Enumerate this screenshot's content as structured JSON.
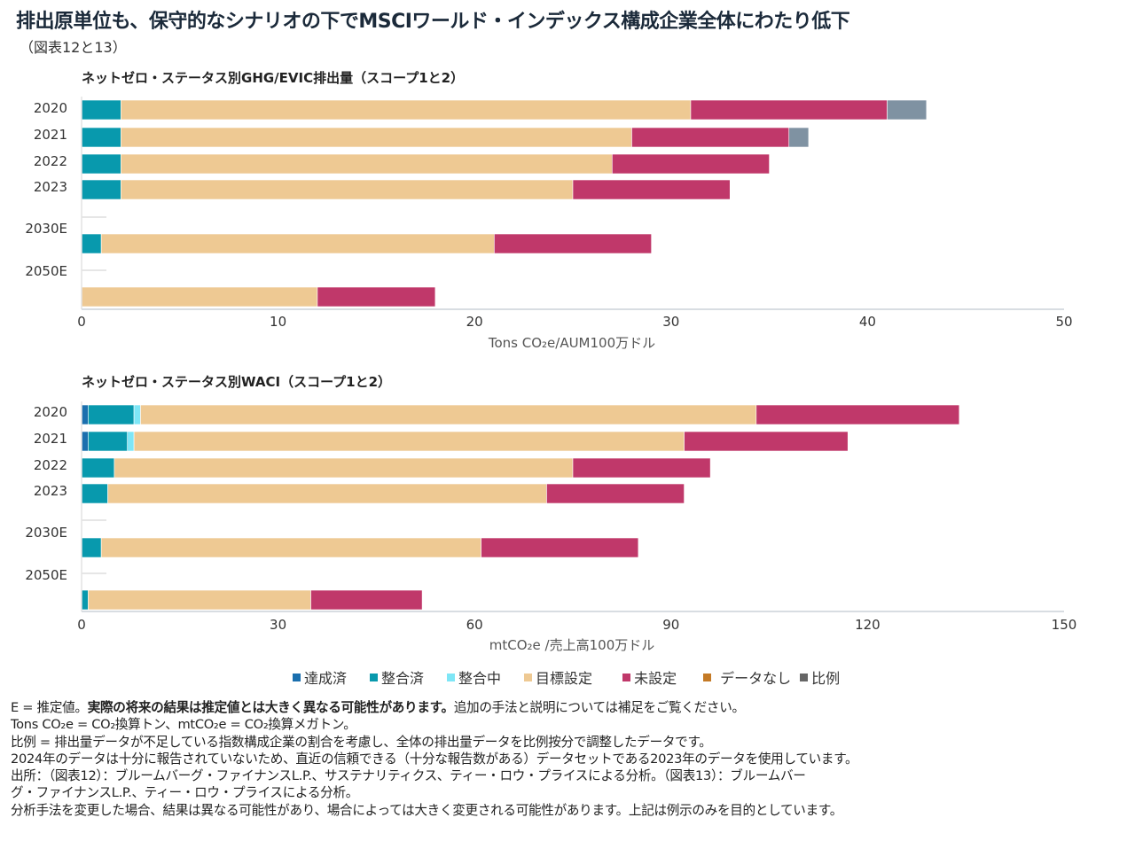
{
  "title": "排出原単位も、保守的なシナリオの下でMSCIワールド・インデックス構成企業全体にわたり低下",
  "subtitle": "（図表12と13）",
  "legend": [
    {
      "label": "達成済",
      "color": "#1a6fae"
    },
    {
      "label": "整合済",
      "color": "#0899ad"
    },
    {
      "label": "整合中",
      "color": "#7ee6f6"
    },
    {
      "label": "目標設定",
      "color": "#eec993"
    },
    {
      "label": "未設定",
      "color": "#c0386a"
    },
    {
      "label": "データなし",
      "color": "#c47a26"
    },
    {
      "label": "比例",
      "color": "#666666"
    }
  ],
  "chart_data": [
    {
      "type": "bar",
      "orientation": "horizontal",
      "stacked": true,
      "title": "ネットゼロ・ステータス別GHG/EVIC排出量（スコープ1と2）",
      "xlabel": "Tons CO₂e/AUM100万ドル",
      "xlim": [
        0,
        50
      ],
      "xticks": [
        "0",
        "10",
        "20",
        "30",
        "40",
        "50"
      ],
      "categories": [
        "2020",
        "2021",
        "2022",
        "2023",
        "2030E",
        "2050E"
      ],
      "series": [
        {
          "name": "達成済",
          "color": "#1a6fae",
          "values": [
            0,
            0,
            0,
            0,
            0,
            0
          ]
        },
        {
          "name": "整合済",
          "color": "#0899ad",
          "values": [
            2,
            2,
            2,
            2,
            1,
            0
          ]
        },
        {
          "name": "整合中",
          "color": "#7ee6f6",
          "values": [
            0,
            0,
            0,
            0,
            0,
            0
          ]
        },
        {
          "name": "目標設定",
          "color": "#eec993",
          "values": [
            29,
            26,
            25,
            23,
            20,
            12
          ]
        },
        {
          "name": "未設定",
          "color": "#c0386a",
          "values": [
            10,
            8,
            8,
            8,
            8,
            6
          ]
        },
        {
          "name": "データなし",
          "color": "#c47a26",
          "values": [
            0,
            0,
            0,
            0,
            0,
            0
          ]
        },
        {
          "name": "比例",
          "color": "#7f92a2",
          "values": [
            2,
            1,
            0,
            0,
            0,
            0
          ]
        }
      ]
    },
    {
      "type": "bar",
      "orientation": "horizontal",
      "stacked": true,
      "title": "ネットゼロ・ステータス別WACI（スコープ1と2）",
      "xlabel": "mtCO₂e /売上高100万ドル",
      "xlim": [
        0,
        150
      ],
      "xticks": [
        "0",
        "30",
        "60",
        "90",
        "120",
        "150"
      ],
      "categories": [
        "2020",
        "2021",
        "2022",
        "2023",
        "2030E",
        "2050E"
      ],
      "series": [
        {
          "name": "達成済",
          "color": "#1a6fae",
          "values": [
            1,
            1,
            0,
            0,
            0,
            0
          ]
        },
        {
          "name": "整合済",
          "color": "#0899ad",
          "values": [
            7,
            6,
            5,
            4,
            3,
            1
          ]
        },
        {
          "name": "整合中",
          "color": "#7ee6f6",
          "values": [
            1,
            1,
            0,
            0,
            0,
            0
          ]
        },
        {
          "name": "目標設定",
          "color": "#eec993",
          "values": [
            94,
            84,
            70,
            67,
            58,
            34
          ]
        },
        {
          "name": "未設定",
          "color": "#c0386a",
          "values": [
            31,
            25,
            21,
            21,
            24,
            17
          ]
        },
        {
          "name": "データなし",
          "color": "#c47a26",
          "values": [
            0,
            0,
            0,
            0,
            0,
            0
          ]
        },
        {
          "name": "比例",
          "color": "#7f92a2",
          "values": [
            0,
            0,
            0,
            0,
            0,
            0
          ]
        }
      ]
    }
  ],
  "notes": {
    "line1_a": "E = 推定値。",
    "line1_b": "実際の将来の結果は推定値とは大きく異なる可能性があります。",
    "line1_c": "追加の手法と説明については補足をご覧ください。",
    "line2": "Tons CO₂e = CO₂換算トン、mtCO₂e = CO₂換算メガトン。",
    "line3": "比例 = 排出量データが不足している指数構成企業の割合を考慮し、全体の排出量データを比例按分で調整したデータです。",
    "line4": "2024年のデータは十分に報告されていないため、直近の信頼できる（十分な報告数がある）データセットである2023年のデータを使用しています。",
    "line5": "出所：（図表12）：ブルームバーグ・ファイナンスL.P.、サステナリティクス、ティー・ロウ・プライスによる分析。（図表13）：ブルームバー",
    "line6": "グ・ファイナンスL.P.、ティー・ロウ・プライスによる分析。",
    "line7": "分析手法を変更した場合、結果は異なる可能性があり、場合によっては大きく変更される可能性があります。上記は例示のみを目的としています。"
  }
}
